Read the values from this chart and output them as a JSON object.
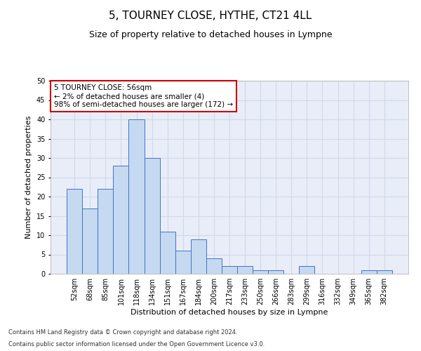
{
  "title": "5, TOURNEY CLOSE, HYTHE, CT21 4LL",
  "subtitle": "Size of property relative to detached houses in Lympne",
  "xlabel": "Distribution of detached houses by size in Lympne",
  "ylabel": "Number of detached properties",
  "categories": [
    "52sqm",
    "68sqm",
    "85sqm",
    "101sqm",
    "118sqm",
    "134sqm",
    "151sqm",
    "167sqm",
    "184sqm",
    "200sqm",
    "217sqm",
    "233sqm",
    "250sqm",
    "266sqm",
    "283sqm",
    "299sqm",
    "316sqm",
    "332sqm",
    "349sqm",
    "365sqm",
    "382sqm"
  ],
  "values": [
    22,
    17,
    22,
    28,
    40,
    30,
    11,
    6,
    9,
    4,
    2,
    2,
    1,
    1,
    0,
    2,
    0,
    0,
    0,
    1,
    1
  ],
  "bar_color": "#c5d9f1",
  "bar_edge_color": "#4472c4",
  "annotation_box_text": "5 TOURNEY CLOSE: 56sqm\n← 2% of detached houses are smaller (4)\n98% of semi-detached houses are larger (172) →",
  "annotation_box_color": "#ffffff",
  "annotation_box_edge_color": "#cc0000",
  "ylim": [
    0,
    50
  ],
  "yticks": [
    0,
    5,
    10,
    15,
    20,
    25,
    30,
    35,
    40,
    45,
    50
  ],
  "grid_color": "#d0d8e8",
  "bg_color": "#e8edf8",
  "footer1": "Contains HM Land Registry data © Crown copyright and database right 2024.",
  "footer2": "Contains public sector information licensed under the Open Government Licence v3.0.",
  "title_fontsize": 11,
  "subtitle_fontsize": 9,
  "axis_label_fontsize": 8,
  "tick_fontsize": 7,
  "annotation_fontsize": 7.5,
  "footer_fontsize": 6
}
